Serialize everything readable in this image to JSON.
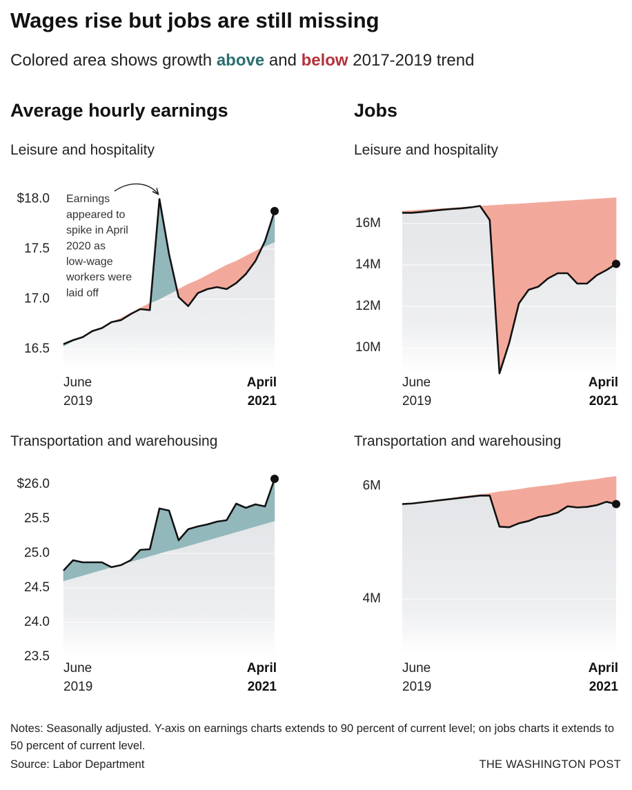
{
  "title": "Wages rise but jobs are still missing",
  "subtitle": [
    {
      "text": "Colored area shows growth "
    },
    {
      "text": "above",
      "color": "#2c6e70"
    },
    {
      "text": " and "
    },
    {
      "text": "below",
      "color": "#b3333b"
    },
    {
      "text": " 2017-2019 trend"
    }
  ],
  "columns": [
    "Average hourly earnings",
    "Jobs"
  ],
  "notes": "Notes: Seasonally adjusted. Y-axis on earnings charts extends to 90 percent of current level; on jobs charts it extends to 50 percent of current level.",
  "source": "Source: Labor Department",
  "credit": "THE WASHINGTON POST",
  "chart_data": [
    {
      "type": "area",
      "title": "Leisure and hospitality",
      "categories": [
        "June 2019",
        null,
        null,
        null,
        null,
        null,
        null,
        null,
        null,
        null,
        null,
        null,
        null,
        null,
        null,
        null,
        null,
        null,
        null,
        null,
        null,
        null,
        "April 2021"
      ],
      "series": [
        {
          "color": "#111111",
          "values": [
            16.55,
            16.59,
            16.62,
            16.68,
            16.71,
            16.77,
            16.79,
            16.85,
            16.9,
            16.89,
            18.0,
            17.45,
            17.02,
            16.93,
            17.06,
            17.1,
            17.12,
            17.1,
            17.16,
            17.25,
            17.38,
            17.58,
            17.88
          ]
        },
        {
          "values": [
            16.53,
            16.58,
            16.62,
            16.67,
            16.72,
            16.77,
            16.81,
            16.86,
            16.91,
            16.96,
            17.0,
            17.05,
            17.1,
            17.15,
            17.19,
            17.24,
            17.29,
            17.34,
            17.38,
            17.43,
            17.48,
            17.53,
            17.57
          ]
        }
      ],
      "above_color": "#93b8bb",
      "below_color": "#f2a99b",
      "ylim": [
        16.3,
        18.1
      ],
      "yticks": [
        {
          "value": 18,
          "label": "$18.0"
        },
        17.5,
        {
          "value": 17,
          "label": "17.0"
        },
        16.5
      ],
      "grid": true,
      "annotation": [
        "Earnings",
        "appeared to",
        "spike in April",
        "2020 as",
        "low-wage",
        "workers were",
        "laid off"
      ]
    },
    {
      "type": "area",
      "title": "Leisure and hospitality",
      "categories": [
        "June 2019",
        null,
        null,
        null,
        null,
        null,
        null,
        null,
        null,
        null,
        null,
        null,
        null,
        null,
        null,
        null,
        null,
        null,
        null,
        null,
        null,
        null,
        "April 2021"
      ],
      "series": [
        {
          "color": "#111111",
          "values": [
            16.52,
            16.52,
            16.56,
            16.61,
            16.66,
            16.7,
            16.73,
            16.78,
            16.85,
            16.17,
            8.76,
            10.23,
            12.14,
            12.8,
            12.95,
            13.35,
            13.6,
            13.6,
            13.1,
            13.1,
            13.5,
            13.75,
            14.05
          ]
        },
        {
          "values": [
            16.6,
            16.63,
            16.66,
            16.69,
            16.72,
            16.75,
            16.78,
            16.81,
            16.84,
            16.87,
            16.9,
            16.93,
            16.95,
            16.98,
            17.01,
            17.04,
            17.07,
            17.1,
            17.13,
            17.16,
            17.19,
            17.22,
            17.25
          ]
        }
      ],
      "above_color": "#93b8bb",
      "below_color": "#f2a99b",
      "ylim": [
        8.8,
        17.4
      ],
      "yticks": [
        {
          "value": 16,
          "label": "16M"
        },
        {
          "value": 14,
          "label": "14M"
        },
        {
          "value": 12,
          "label": "12M"
        },
        {
          "value": 10,
          "label": "10M"
        }
      ],
      "grid": true
    },
    {
      "type": "area",
      "title": "Transportation and warehousing",
      "categories": [
        "June 2019",
        null,
        null,
        null,
        null,
        null,
        null,
        null,
        null,
        null,
        null,
        null,
        null,
        null,
        null,
        null,
        null,
        null,
        null,
        null,
        null,
        null,
        "April 2021"
      ],
      "series": [
        {
          "color": "#111111",
          "values": [
            24.75,
            24.9,
            24.87,
            24.87,
            24.87,
            24.8,
            24.83,
            24.9,
            25.05,
            25.06,
            25.65,
            25.62,
            25.19,
            25.35,
            25.39,
            25.42,
            25.46,
            25.48,
            25.72,
            25.66,
            25.71,
            25.68,
            26.08
          ]
        },
        {
          "values": [
            24.6,
            24.64,
            24.68,
            24.72,
            24.76,
            24.8,
            24.84,
            24.88,
            24.92,
            24.96,
            25.0,
            25.04,
            25.07,
            25.11,
            25.15,
            25.19,
            25.23,
            25.27,
            25.31,
            25.35,
            25.39,
            25.43,
            25.47
          ]
        }
      ],
      "above_color": "#93b8bb",
      "below_color": "#f2a99b",
      "ylim": [
        23.5,
        26.15
      ],
      "yticks": [
        {
          "value": 26,
          "label": "$26.0"
        },
        25.5,
        {
          "value": 25,
          "label": "25.0"
        },
        24.5,
        {
          "value": 24,
          "label": "24.0"
        },
        23.5
      ],
      "grid": true
    },
    {
      "type": "area",
      "title": "Transportation and warehousing",
      "categories": [
        "June 2019",
        null,
        null,
        null,
        null,
        null,
        null,
        null,
        null,
        null,
        null,
        null,
        null,
        null,
        null,
        null,
        null,
        null,
        null,
        null,
        null,
        null,
        "April 2021"
      ],
      "series": [
        {
          "color": "#111111",
          "values": [
            5.68,
            5.69,
            5.71,
            5.73,
            5.75,
            5.77,
            5.79,
            5.81,
            5.83,
            5.83,
            5.28,
            5.27,
            5.34,
            5.38,
            5.45,
            5.48,
            5.53,
            5.64,
            5.62,
            5.63,
            5.66,
            5.72,
            5.68
          ]
        },
        {
          "values": [
            5.67,
            5.69,
            5.72,
            5.74,
            5.76,
            5.78,
            5.81,
            5.83,
            5.85,
            5.87,
            5.9,
            5.92,
            5.94,
            5.97,
            5.99,
            6.01,
            6.03,
            6.06,
            6.08,
            6.1,
            6.12,
            6.15,
            6.17
          ]
        }
      ],
      "above_color": "#93b8bb",
      "below_color": "#f2a99b",
      "ylim": [
        3.0,
        6.2
      ],
      "yticks": [
        {
          "value": 6,
          "label": "6M"
        },
        {
          "value": 4,
          "label": "4M"
        }
      ],
      "grid": true
    }
  ]
}
